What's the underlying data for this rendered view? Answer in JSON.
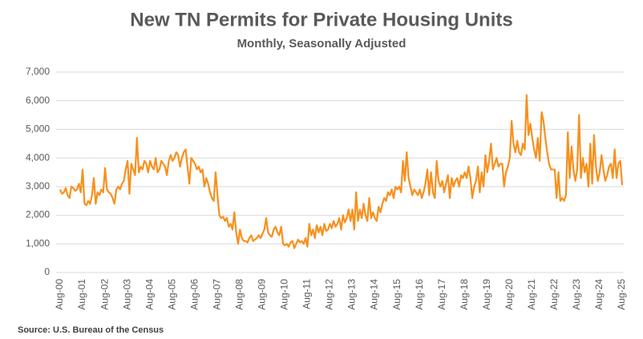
{
  "chart_data": {
    "type": "line",
    "title": "New TN Permits for Private Housing Units",
    "subtitle": "Monthly, Seasonally Adjusted",
    "source": "Source: U.S. Bureau of the Census",
    "categories": [
      "Aug-00",
      null,
      null,
      null,
      null,
      null,
      null,
      null,
      null,
      null,
      null,
      null,
      "Aug-01",
      null,
      null,
      null,
      null,
      null,
      null,
      null,
      null,
      null,
      null,
      null,
      "Aug-02",
      null,
      null,
      null,
      null,
      null,
      null,
      null,
      null,
      null,
      null,
      null,
      "Aug-03",
      null,
      null,
      null,
      null,
      null,
      null,
      null,
      null,
      null,
      null,
      null,
      "Aug-04",
      null,
      null,
      null,
      null,
      null,
      null,
      null,
      null,
      null,
      null,
      null,
      "Aug-05",
      null,
      null,
      null,
      null,
      null,
      null,
      null,
      null,
      null,
      null,
      null,
      "Aug-06",
      null,
      null,
      null,
      null,
      null,
      null,
      null,
      null,
      null,
      null,
      null,
      "Aug-07",
      null,
      null,
      null,
      null,
      null,
      null,
      null,
      null,
      null,
      null,
      null,
      "Aug-08",
      null,
      null,
      null,
      null,
      null,
      null,
      null,
      null,
      null,
      null,
      null,
      "Aug-09",
      null,
      null,
      null,
      null,
      null,
      null,
      null,
      null,
      null,
      null,
      null,
      "Aug-10",
      null,
      null,
      null,
      null,
      null,
      null,
      null,
      null,
      null,
      null,
      null,
      "Aug-11",
      null,
      null,
      null,
      null,
      null,
      null,
      null,
      null,
      null,
      null,
      null,
      "Aug-12",
      null,
      null,
      null,
      null,
      null,
      null,
      null,
      null,
      null,
      null,
      null,
      "Aug-13",
      null,
      null,
      null,
      null,
      null,
      null,
      null,
      null,
      null,
      null,
      null,
      "Aug-14",
      null,
      null,
      null,
      null,
      null,
      null,
      null,
      null,
      null,
      null,
      null,
      "Aug-15",
      null,
      null,
      null,
      null,
      null,
      null,
      null,
      null,
      null,
      null,
      null,
      "Aug-16",
      null,
      null,
      null,
      null,
      null,
      null,
      null,
      null,
      null,
      null,
      null,
      "Aug-17",
      null,
      null,
      null,
      null,
      null,
      null,
      null,
      null,
      null,
      null,
      null,
      "Aug-18",
      null,
      null,
      null,
      null,
      null,
      null,
      null,
      null,
      null,
      null,
      null,
      "Aug-19",
      null,
      null,
      null,
      null,
      null,
      null,
      null,
      null,
      null,
      null,
      null,
      "Aug-20",
      null,
      null,
      null,
      null,
      null,
      null,
      null,
      null,
      null,
      null,
      null,
      "Aug-21",
      null,
      null,
      null,
      null,
      null,
      null,
      null,
      null,
      null,
      null,
      null,
      "Aug-22",
      null,
      null,
      null,
      null,
      null,
      null,
      null,
      null,
      null,
      null,
      null,
      "Aug-23",
      null,
      null,
      null,
      null,
      null,
      null,
      null,
      null,
      null,
      null,
      null,
      "Aug-24",
      null,
      null,
      null,
      null,
      null,
      null,
      null,
      null,
      null,
      null,
      null,
      "Aug-25"
    ],
    "values": [
      2900,
      2750,
      2800,
      2950,
      2700,
      2600,
      3000,
      2950,
      2850,
      2900,
      3100,
      2800,
      3600,
      2400,
      2350,
      2500,
      2400,
      2700,
      3300,
      2400,
      2800,
      2700,
      2900,
      2800,
      3650,
      2900,
      2800,
      2750,
      2600,
      2400,
      2900,
      3000,
      2900,
      3100,
      3200,
      3600,
      3900,
      2750,
      3800,
      3600,
      3400,
      4700,
      3500,
      3700,
      3600,
      3900,
      3800,
      3500,
      3900,
      3700,
      3600,
      4000,
      3500,
      3600,
      3900,
      3800,
      3700,
      3400,
      3900,
      4100,
      3900,
      4000,
      4200,
      4100,
      3700,
      4000,
      4200,
      4300,
      3700,
      3100,
      4000,
      3900,
      3800,
      3600,
      3700,
      3500,
      3600,
      3000,
      3300,
      3100,
      2800,
      2600,
      2500,
      3500,
      2700,
      2000,
      1900,
      1950,
      1800,
      1900,
      1600,
      1700,
      1500,
      2100,
      1400,
      1000,
      1500,
      1200,
      1100,
      1100,
      1050,
      1200,
      1300,
      1100,
      1150,
      1200,
      1300,
      1200,
      1350,
      1500,
      1900,
      1400,
      1300,
      1250,
      1500,
      1600,
      1400,
      1300,
      1600,
      1000,
      950,
      1000,
      900,
      1050,
      1100,
      850,
      1000,
      1150,
      1050,
      1100,
      1000,
      1200,
      900,
      1700,
      1300,
      1500,
      1200,
      1650,
      1400,
      1600,
      1300,
      1700,
      1450,
      1500,
      1700,
      1550,
      1800,
      1600,
      1700,
      1900,
      1500,
      2000,
      1750,
      1900,
      2200,
      1800,
      2200,
      1500,
      2800,
      1800,
      2200,
      1900,
      2400,
      2000,
      1800,
      2600,
      1900,
      2100,
      1900,
      1800,
      2300,
      2100,
      2400,
      2600,
      2500,
      2800,
      2700,
      2900,
      2600,
      3000,
      2900,
      3000,
      2800,
      3900,
      3200,
      4200,
      3300,
      3000,
      2700,
      2900,
      2800,
      2700,
      2900,
      2600,
      2800,
      3100,
      3600,
      2700,
      3500,
      2800,
      2600,
      3900,
      3200,
      3000,
      3200,
      2800,
      3100,
      3400,
      2600,
      3300,
      3000,
      3200,
      3300,
      3000,
      3400,
      3300,
      3500,
      3300,
      3700,
      3300,
      2600,
      3000,
      3200,
      3700,
      2800,
      3500,
      3000,
      4100,
      3500,
      3900,
      4500,
      3600,
      3800,
      4000,
      3700,
      3800,
      3800,
      3000,
      3500,
      3700,
      4000,
      5300,
      4500,
      4200,
      4600,
      4200,
      4100,
      4500,
      4300,
      6200,
      4800,
      5200,
      4700,
      4300,
      4000,
      4700,
      3900,
      5600,
      5300,
      4700,
      4200,
      3800,
      3600,
      3600,
      3600,
      2600,
      3500,
      2500,
      2600,
      2500,
      2700,
      4900,
      3300,
      4400,
      3600,
      3200,
      3600,
      5500,
      3300,
      4000,
      3500,
      3800,
      3000,
      4500,
      3100,
      4800,
      3700,
      3200,
      3500,
      4100,
      3600,
      3200,
      3400,
      3700,
      3800,
      3300,
      4300,
      3300,
      3800,
      3900,
      3050
    ],
    "color": "#f7901e",
    "ylim": [
      0,
      7000
    ],
    "yticks": [
      0,
      {
        "value": 1000,
        "label": "1,000"
      },
      {
        "value": 2000,
        "label": "2,000"
      },
      {
        "value": 3000,
        "label": "3,000"
      },
      {
        "value": 4000,
        "label": "4,000"
      },
      {
        "value": 5000,
        "label": "5,000"
      },
      {
        "value": 6000,
        "label": "6,000"
      },
      {
        "value": 7000,
        "label": "7,000"
      }
    ],
    "grid": true
  }
}
